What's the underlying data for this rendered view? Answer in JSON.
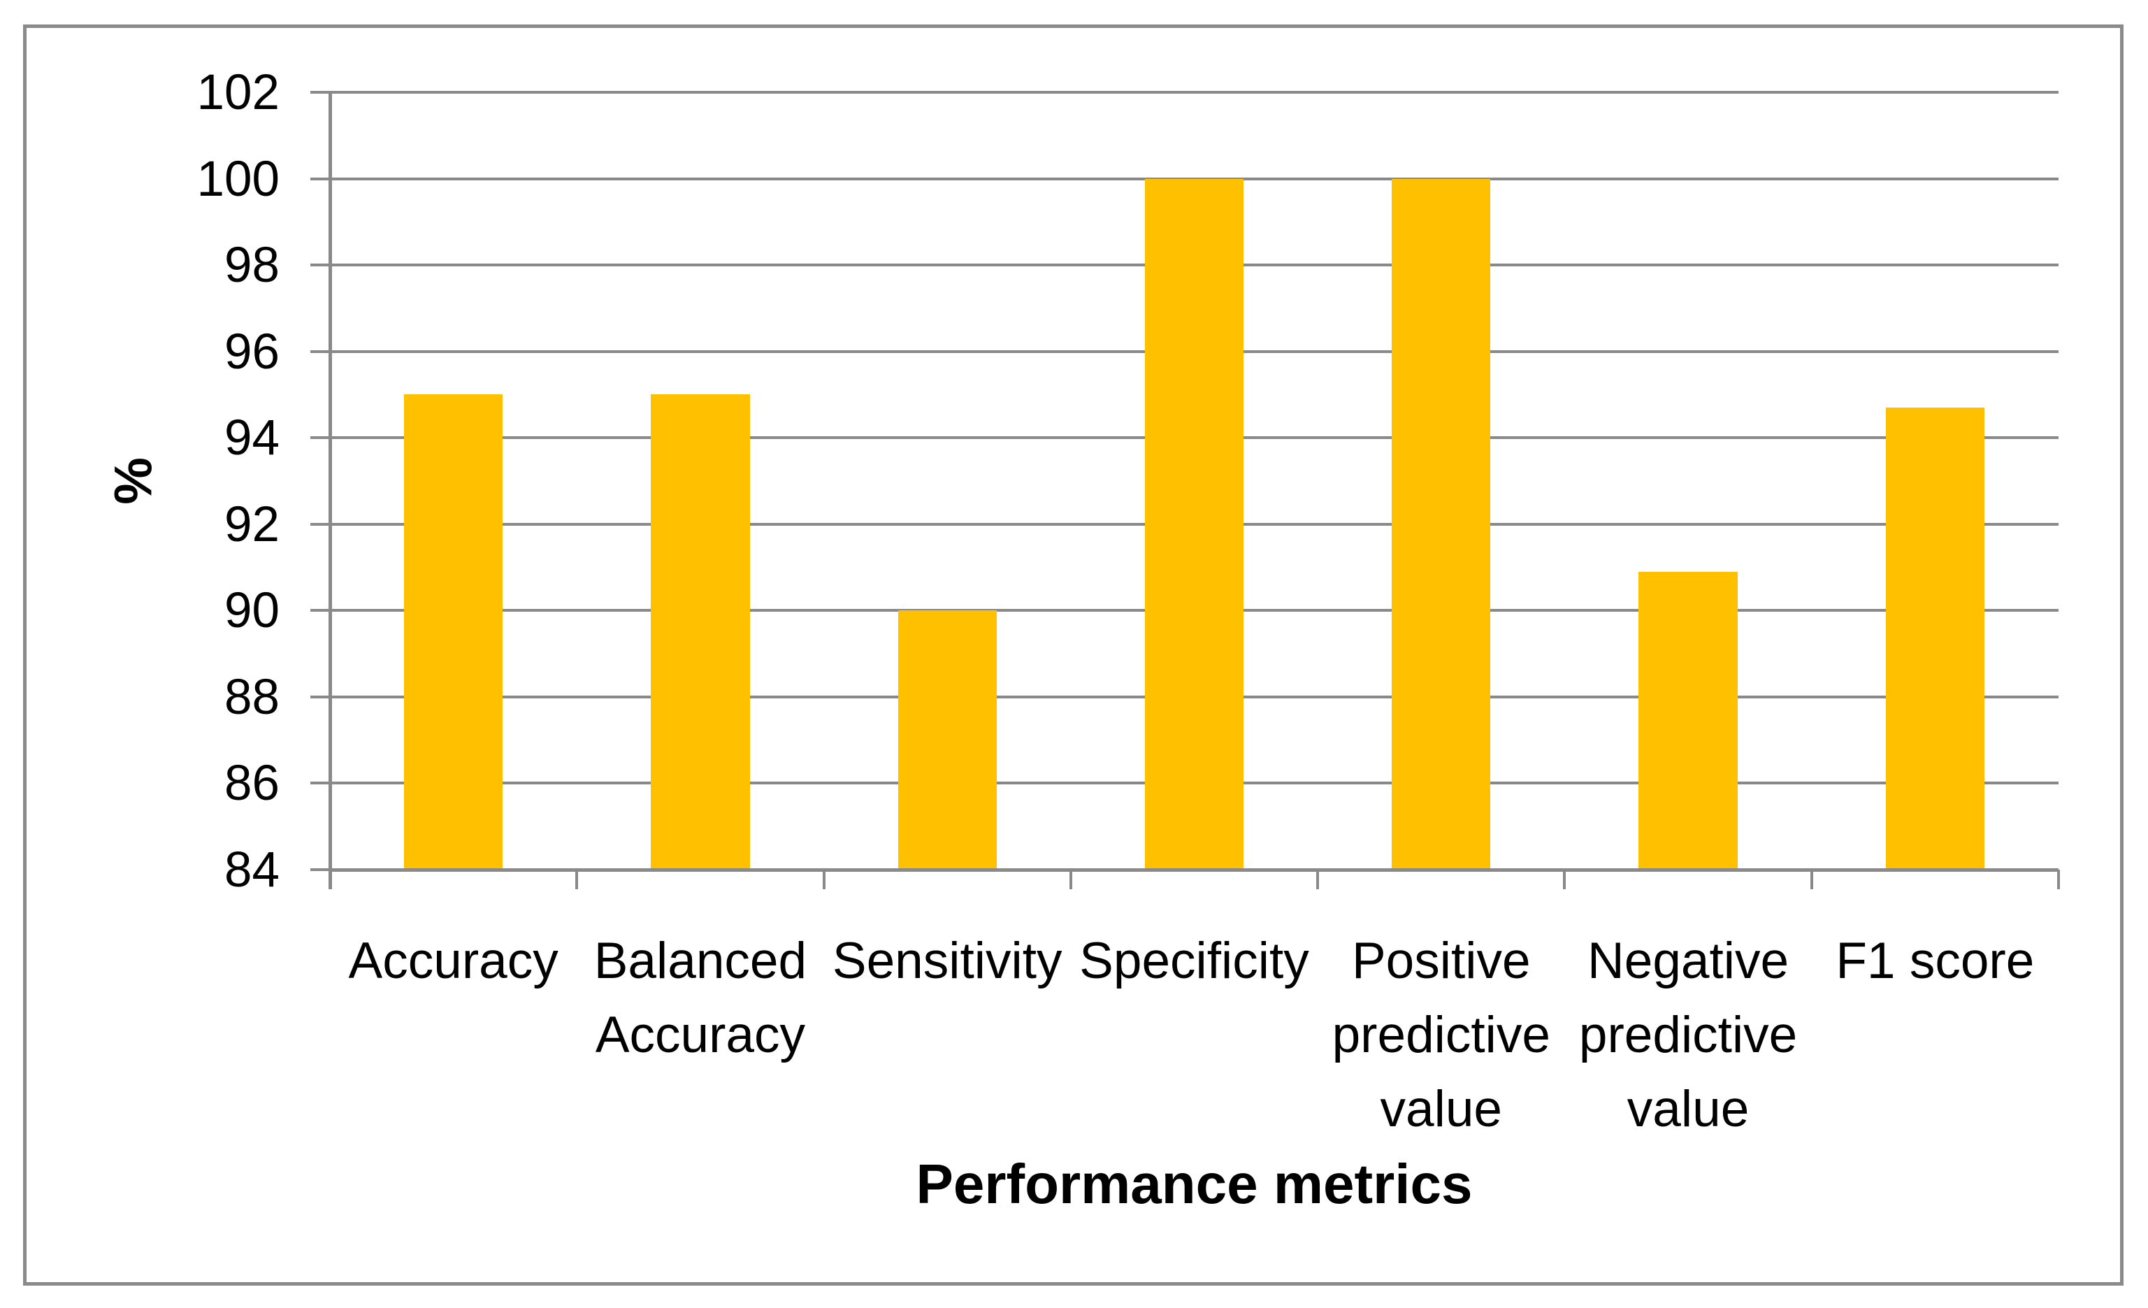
{
  "figure": {
    "background_color": "#FFFFFF",
    "border_color": "#8A8A8A"
  },
  "chart_data": {
    "type": "bar",
    "title": "",
    "categories": [
      "Accuracy",
      "Balanced Accuracy",
      "Sensitivity",
      "Specificity",
      "Positive predictive value",
      "Negative predictive value",
      "F1 score"
    ],
    "category_label_lines": [
      [
        "Accuracy"
      ],
      [
        "Balanced",
        "Accuracy"
      ],
      [
        "Sensitivity"
      ],
      [
        "Specificity"
      ],
      [
        "Positive",
        "predictive",
        "value"
      ],
      [
        "Negative",
        "predictive",
        "value"
      ],
      [
        "F1 score"
      ]
    ],
    "values": [
      95,
      95,
      90,
      100,
      100,
      90.9,
      94.7
    ],
    "xlabel": "Performance metrics",
    "ylabel": "%",
    "ylim": [
      84,
      102
    ],
    "yticks": [
      84,
      86,
      88,
      90,
      92,
      94,
      96,
      98,
      100,
      102
    ],
    "grid": "horizontal",
    "legend_position": "none",
    "bar_color": "#FFC000",
    "gridline_color": "#898989",
    "axis_color": "#898989",
    "text_color": "#000000",
    "bar_width_fraction": 0.4
  }
}
